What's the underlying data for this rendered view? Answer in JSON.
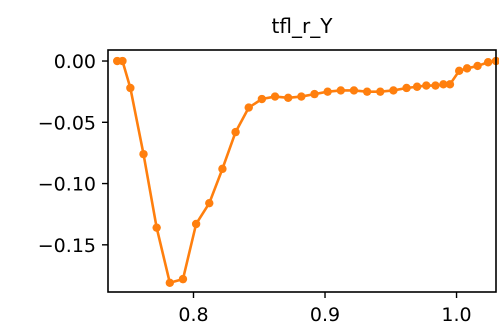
{
  "chart_data": {
    "type": "line",
    "title": "tfl_r_Y",
    "xlabel": "",
    "ylabel": "",
    "xlim": [
      0.735,
      1.03
    ],
    "ylim": [
      -0.1885,
      0.009
    ],
    "x_ticks": [
      0.8,
      0.9,
      1.0
    ],
    "x_tick_labels": [
      "0.8",
      "0.9",
      "1.0"
    ],
    "y_ticks": [
      0.0,
      -0.05,
      -0.1,
      -0.15
    ],
    "y_tick_labels": [
      "0.00",
      "−0.05",
      "−0.10",
      "−0.15"
    ],
    "grid": false,
    "legend": "none",
    "series": [
      {
        "color": "#ff7f0e",
        "points": [
          [
            0.742,
            0.0
          ],
          [
            0.746,
            0.0
          ],
          [
            0.752,
            -0.022
          ],
          [
            0.762,
            -0.076
          ],
          [
            0.772,
            -0.136
          ],
          [
            0.782,
            -0.181
          ],
          [
            0.792,
            -0.178
          ],
          [
            0.802,
            -0.133
          ],
          [
            0.812,
            -0.116
          ],
          [
            0.822,
            -0.088
          ],
          [
            0.832,
            -0.058
          ],
          [
            0.842,
            -0.038
          ],
          [
            0.852,
            -0.031
          ],
          [
            0.862,
            -0.029
          ],
          [
            0.872,
            -0.03
          ],
          [
            0.882,
            -0.029
          ],
          [
            0.892,
            -0.027
          ],
          [
            0.902,
            -0.025
          ],
          [
            0.912,
            -0.024
          ],
          [
            0.922,
            -0.024
          ],
          [
            0.932,
            -0.025
          ],
          [
            0.942,
            -0.025
          ],
          [
            0.952,
            -0.024
          ],
          [
            0.962,
            -0.022
          ],
          [
            0.97,
            -0.021
          ],
          [
            0.977,
            -0.02
          ],
          [
            0.984,
            -0.02
          ],
          [
            0.99,
            -0.019
          ],
          [
            0.995,
            -0.019
          ],
          [
            1.002,
            -0.008
          ],
          [
            1.008,
            -0.006
          ],
          [
            1.016,
            -0.004
          ],
          [
            1.024,
            -0.001
          ],
          [
            1.03,
            0.0
          ]
        ]
      }
    ]
  }
}
